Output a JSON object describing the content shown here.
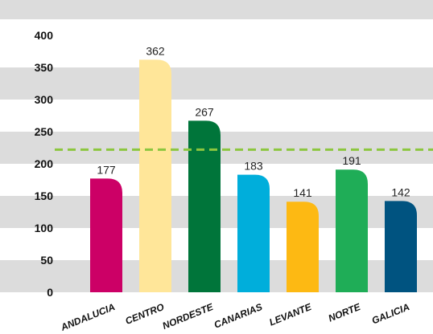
{
  "chart_data": {
    "type": "bar",
    "categories": [
      "ANDALUCIA",
      "CENTRO",
      "NORDESTE",
      "CANARIAS",
      "LEVANTE",
      "NORTE",
      "GALICIA"
    ],
    "values": [
      177,
      362,
      267,
      183,
      141,
      191,
      142
    ],
    "data_labels": [
      "177",
      "362",
      "267",
      "183",
      "141",
      "191",
      "142"
    ],
    "title": "",
    "xlabel": "",
    "ylabel": "",
    "ylim": [
      0,
      400
    ],
    "yticks": [
      "0",
      "50",
      "100",
      "150",
      "200",
      "250",
      "300",
      "350",
      "400"
    ],
    "reference_line": {
      "value": 222,
      "style": "dashed",
      "color": "#8cc63f"
    },
    "grid": true,
    "legend": "none",
    "colors": {
      "bars": [
        "#cc0066",
        "#ffe699",
        "#00753a",
        "#00aedb",
        "#fdb913",
        "#1fad57",
        "#005380"
      ],
      "band": "#dcdcdc",
      "background": "#ffffff"
    }
  }
}
